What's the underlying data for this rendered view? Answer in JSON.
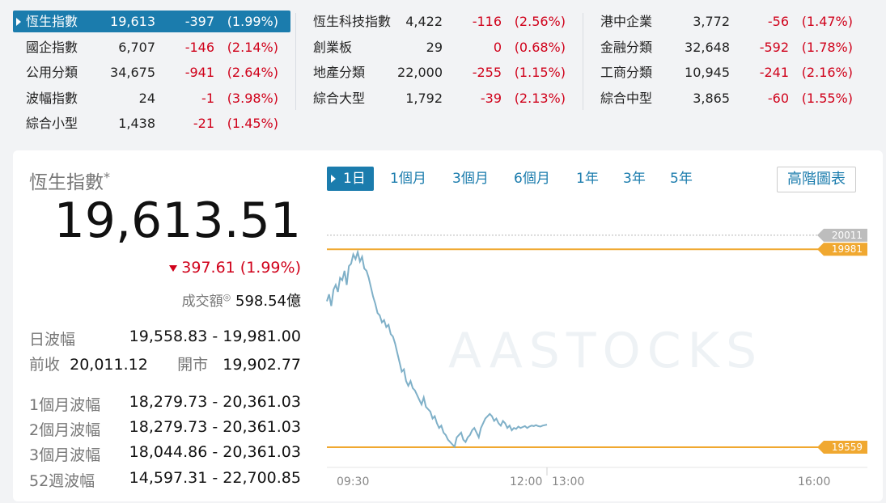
{
  "ticker": {
    "rows": [
      [
        {
          "name": "恆生指數",
          "value": "19,613",
          "change": "-397",
          "pct": "(1.99%)",
          "active": true
        },
        {
          "name": "恆生科技指數",
          "value": "4,422",
          "change": "-116",
          "pct": "(2.56%)"
        },
        {
          "name": "港中企業",
          "value": "3,772",
          "change": "-56",
          "pct": "(1.47%)"
        }
      ],
      [
        {
          "name": "國企指數",
          "value": "6,707",
          "change": "-146",
          "pct": "(2.14%)"
        },
        {
          "name": "創業板",
          "value": "29",
          "change": "0",
          "pct": "(0.68%)"
        },
        {
          "name": "金融分類",
          "value": "32,648",
          "change": "-592",
          "pct": "(1.78%)"
        }
      ],
      [
        {
          "name": "公用分類",
          "value": "34,675",
          "change": "-941",
          "pct": "(2.64%)"
        },
        {
          "name": "地產分類",
          "value": "22,000",
          "change": "-255",
          "pct": "(1.15%)"
        },
        {
          "name": "工商分類",
          "value": "10,945",
          "change": "-241",
          "pct": "(2.16%)"
        }
      ],
      [
        {
          "name": "波幅指數",
          "value": "24",
          "change": "-1",
          "pct": "(3.98%)"
        },
        {
          "name": "綜合大型",
          "value": "1,792",
          "change": "-39",
          "pct": "(2.13%)"
        },
        {
          "name": "綜合中型",
          "value": "3,865",
          "change": "-60",
          "pct": "(1.55%)"
        }
      ],
      [
        {
          "name": "綜合小型",
          "value": "1,438",
          "change": "-21",
          "pct": "(1.45%)"
        }
      ]
    ]
  },
  "detail": {
    "title": "恆生指數",
    "asterisk": "*",
    "price": "19,613.51",
    "change": "397.61 (1.99%)",
    "turnover_label": "成交額",
    "turnover_mark": "◎",
    "turnover_value": "598.54億",
    "day_range_label": "日波幅",
    "day_range": "19,558.83 - 19,981.00",
    "prev_close_label": "前收",
    "prev_close": "20,011.12",
    "open_label": "開市",
    "open": "19,902.77",
    "range_1m_label": "1個月波幅",
    "range_1m": "18,279.73 - 20,361.03",
    "range_2m_label": "2個月波幅",
    "range_2m": "18,279.73 - 20,361.03",
    "range_3m_label": "3個月波幅",
    "range_3m": "18,044.86 - 20,361.03",
    "range_52w_label": "52週波幅",
    "range_52w": "14,597.31 - 22,700.85"
  },
  "tabs": [
    "1日",
    "1個月",
    "3個月",
    "6個月",
    "1年",
    "3年",
    "5年"
  ],
  "selected_tab": "1日",
  "advanced_chart_label": "高階圖表",
  "colors": {
    "accent": "#1b7cad",
    "down": "#d0021b",
    "line": "#7fb0c8",
    "band": "#f0a830",
    "prev": "#b5b5b5"
  },
  "chart_data": {
    "type": "line",
    "x_ticks": [
      "09:30",
      "12:00",
      "13:00",
      "16:00"
    ],
    "watermark": "AASTOCKS",
    "prev_close": 20011,
    "day_high": 19981,
    "day_low": 19559,
    "ylim": [
      19540,
      20040
    ],
    "series": [
      {
        "x": [
          0,
          1,
          2,
          3,
          4,
          5,
          6,
          7,
          8,
          9,
          10,
          11,
          12,
          13,
          14,
          15,
          16,
          17,
          18,
          19,
          20,
          21,
          22,
          23,
          24,
          25,
          26,
          27,
          28,
          29,
          30,
          31,
          32,
          33,
          34,
          35,
          36,
          37,
          38,
          39,
          40,
          41,
          42,
          43,
          44,
          45,
          46,
          47,
          48,
          49,
          50,
          51,
          52,
          53,
          54,
          55,
          56,
          57,
          58,
          59,
          60,
          61,
          62,
          63,
          64,
          65,
          66,
          67,
          68,
          69,
          70,
          71,
          72,
          73,
          74,
          75,
          76,
          77,
          78,
          79,
          80,
          81,
          82,
          83,
          84,
          85,
          86,
          87,
          88,
          89,
          90,
          91,
          92,
          93,
          94,
          95,
          96,
          97,
          98,
          99,
          100
        ],
        "values": [
          19870,
          19885,
          19860,
          19895,
          19905,
          19890,
          19920,
          19915,
          19935,
          19905,
          19945,
          19950,
          19970,
          19960,
          19975,
          19955,
          19965,
          19940,
          19935,
          19920,
          19900,
          19880,
          19865,
          19845,
          19840,
          19825,
          19830,
          19815,
          19820,
          19800,
          19795,
          19780,
          19760,
          19740,
          19720,
          19725,
          19700,
          19690,
          19700,
          19685,
          19680,
          19670,
          19660,
          19650,
          19665,
          19645,
          19640,
          19635,
          19620,
          19625,
          19610,
          19600,
          19605,
          19590,
          19585,
          19575,
          19570,
          19565,
          19560,
          19580,
          19585,
          19590,
          19575,
          19570,
          19580,
          19585,
          19595,
          19600,
          19590,
          19580,
          19600,
          19610,
          19620,
          19625,
          19630,
          19625,
          19615,
          19620,
          19610,
          19605,
          19615,
          19610,
          19600,
          19605,
          19595,
          19600,
          19598,
          19603,
          19600,
          19602,
          19604,
          19600,
          19603,
          19605,
          19604,
          19606,
          19604,
          19603,
          19605,
          19606,
          19607
        ]
      }
    ]
  }
}
